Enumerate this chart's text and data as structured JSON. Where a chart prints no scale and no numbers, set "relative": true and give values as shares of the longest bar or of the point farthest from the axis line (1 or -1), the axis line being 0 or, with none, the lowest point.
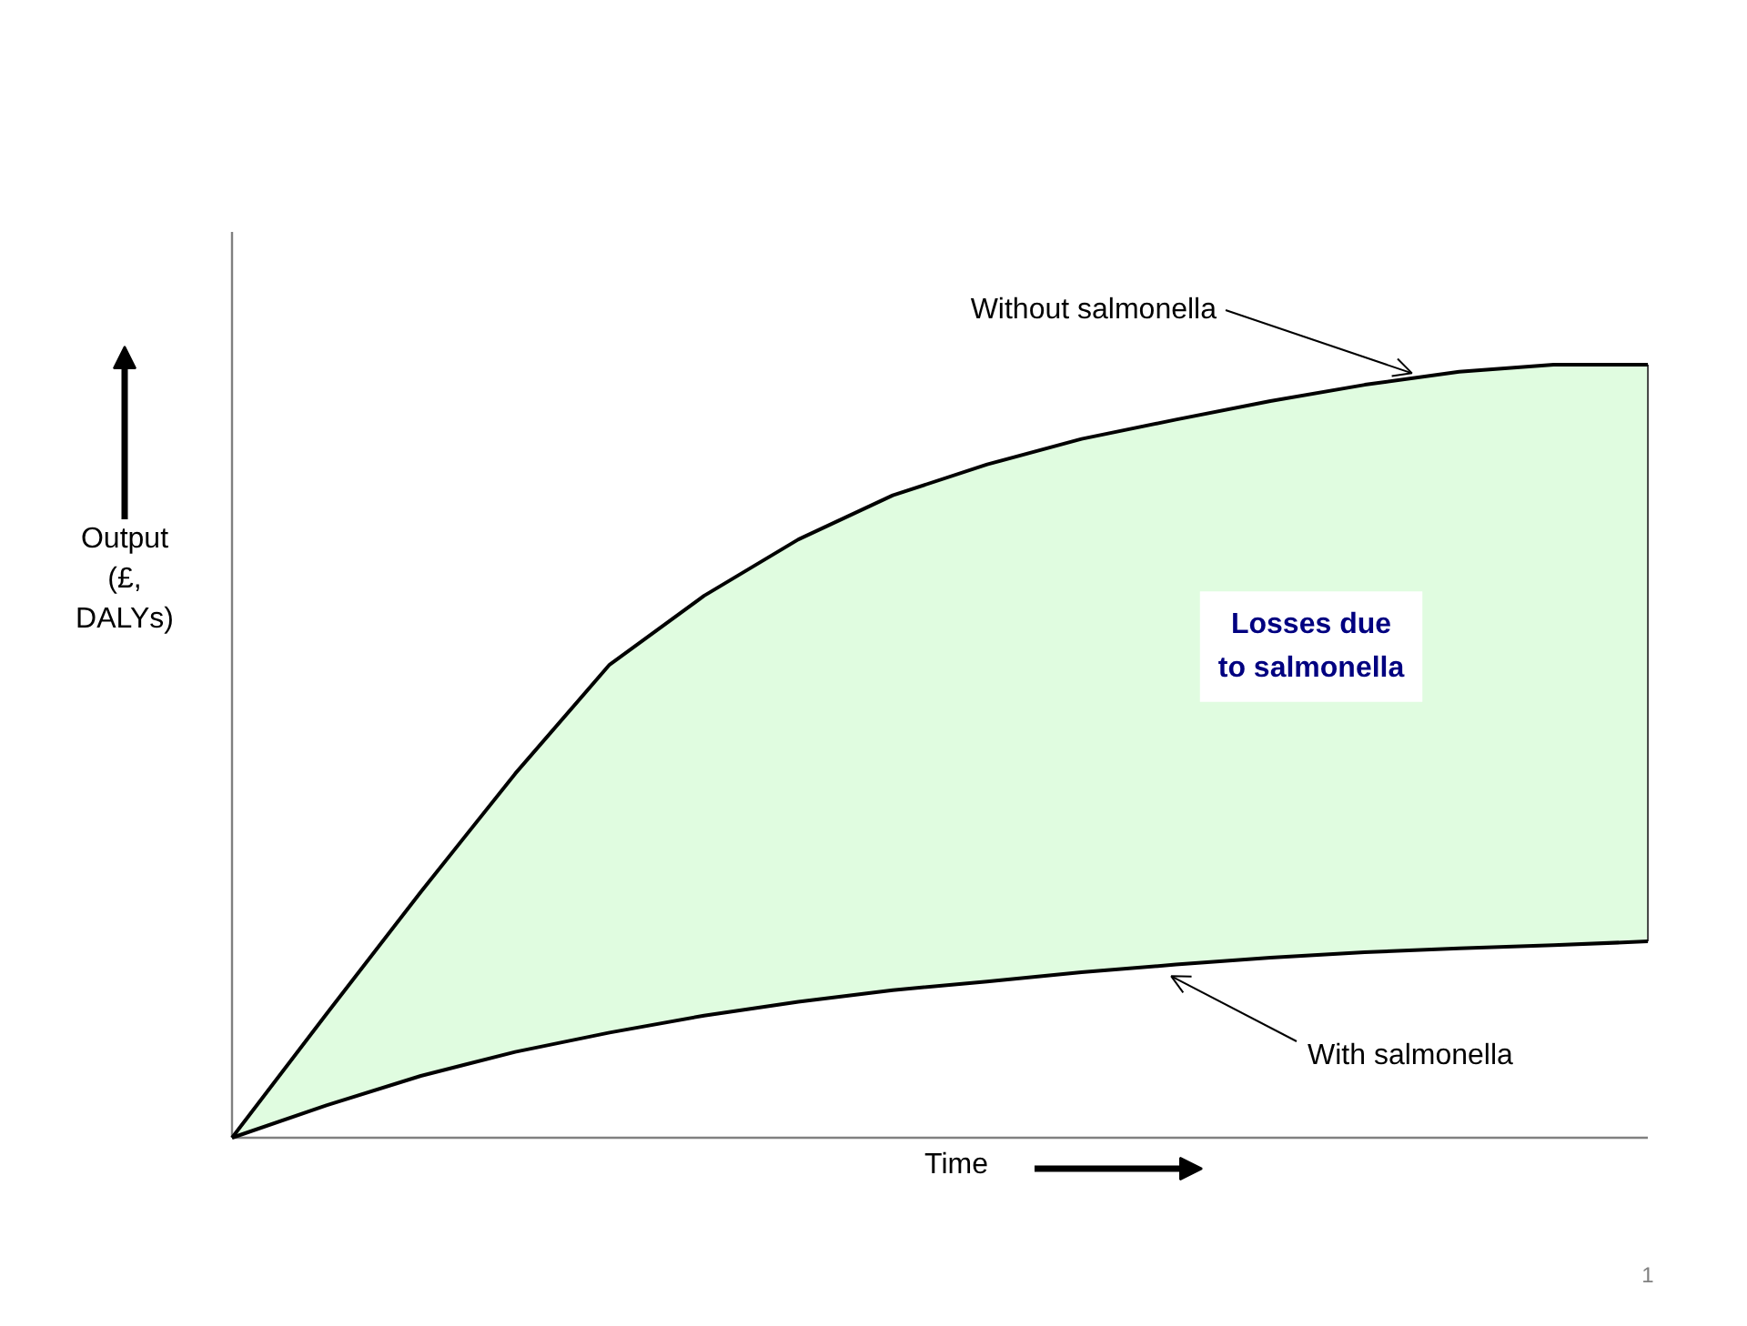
{
  "chart_data": {
    "type": "line",
    "relative": true,
    "xlabel": "Time",
    "ylabel": "Output (£, DALYs)",
    "categories": [
      null,
      null,
      null,
      null,
      null,
      null,
      null,
      null,
      null,
      null,
      null,
      null,
      null,
      null,
      null,
      null
    ],
    "series": [
      {
        "name": "Without salmonella",
        "type": "area",
        "color": "#e0fce0",
        "values": [
          0,
          0.16,
          0.318,
          0.471,
          0.612,
          0.701,
          0.774,
          0.831,
          0.871,
          0.904,
          0.929,
          0.953,
          0.974,
          0.991,
          1,
          1
        ]
      },
      {
        "name": "With salmonella",
        "color": "#000000",
        "values": [
          0,
          0.042,
          0.08,
          0.111,
          0.136,
          0.158,
          0.176,
          0.191,
          0.202,
          0.214,
          0.224,
          0.233,
          0.24,
          0.245,
          0.249,
          0.254
        ]
      }
    ],
    "annotations": [
      "Losses due to salmonella",
      "1"
    ],
    "grid": false,
    "legend": false,
    "line_style": "solid"
  }
}
